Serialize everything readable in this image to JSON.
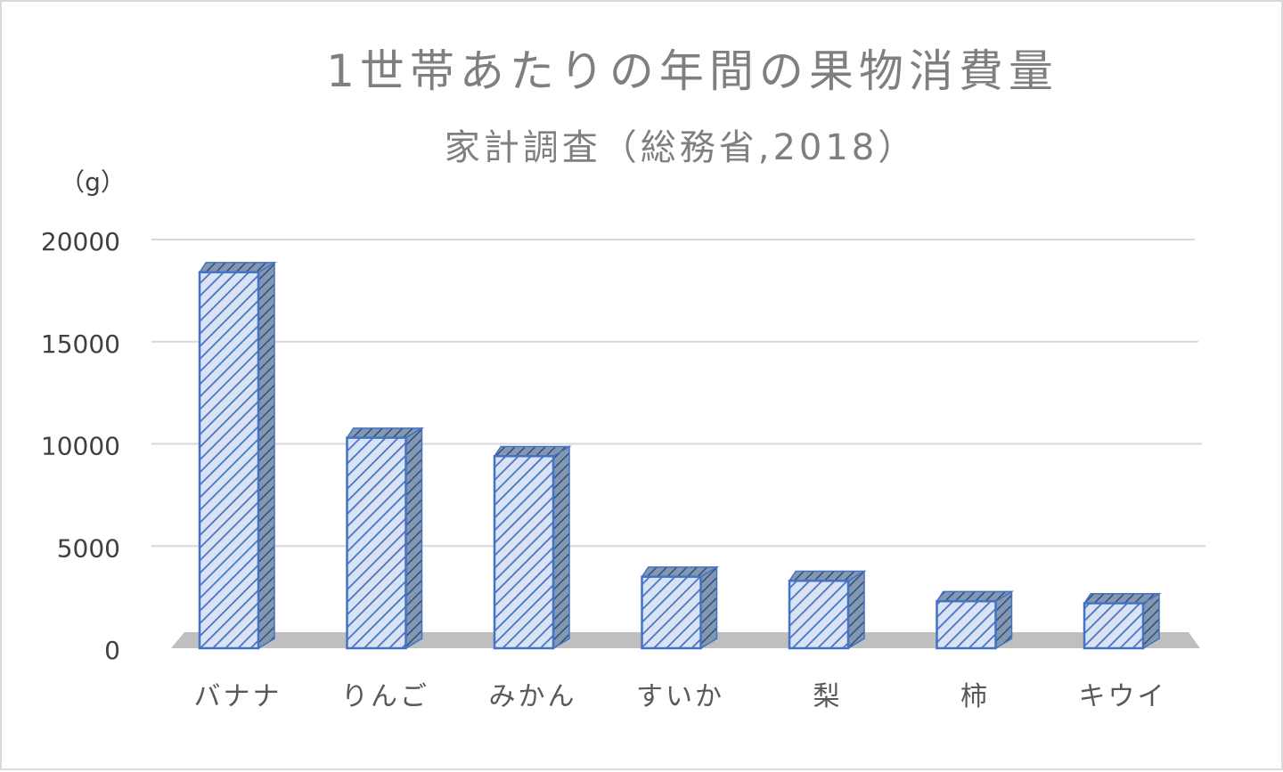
{
  "chart_data": {
    "type": "bar",
    "title": "1世帯あたりの年間の果物消費量",
    "subtitle": "家計調査（総務省,2018）",
    "ylabel": "（g）",
    "xlabel": "",
    "categories": [
      "バナナ",
      "りんご",
      "みかん",
      "すいか",
      "梨",
      "柿",
      "キウイ"
    ],
    "values": [
      18400,
      10300,
      9400,
      3500,
      3300,
      2300,
      2200
    ],
    "ylim": [
      0,
      20000
    ],
    "yticks": [
      "0",
      "5000",
      "10000",
      "15000",
      "20000"
    ],
    "grid": true,
    "legend": "none",
    "style": "3d-column-hatched",
    "colors": {
      "bar_fill": "#dae3f3",
      "bar_hatch": "#4472c4",
      "bar_edge": "#4472c4",
      "floor": "#bfbfbf",
      "grid": "#d9d9d9",
      "title": "#7f7f7f"
    }
  }
}
